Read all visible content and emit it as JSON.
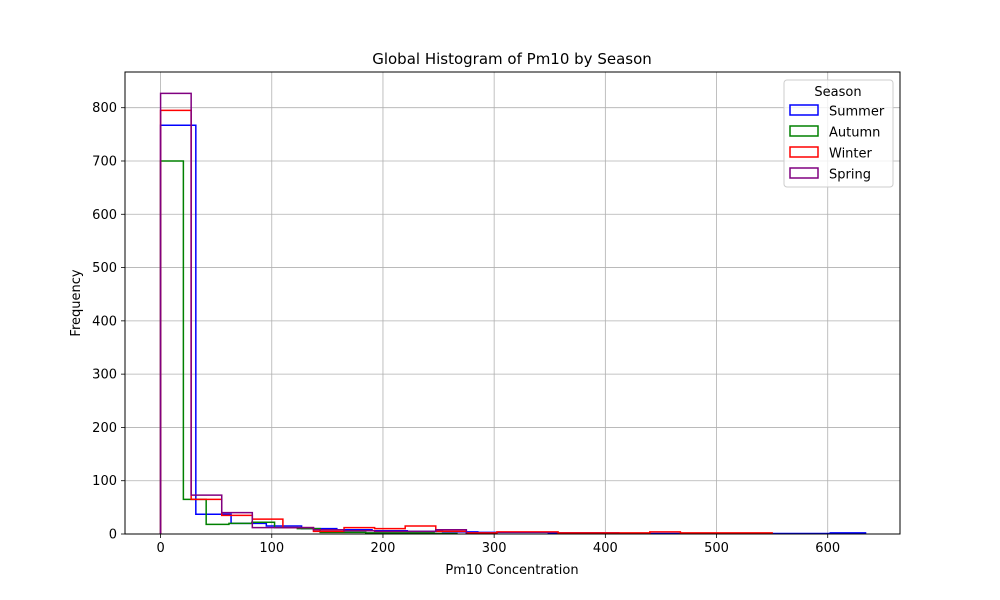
{
  "chart_data": {
    "type": "histogram",
    "title": "Global Histogram of Pm10 by Season",
    "xlabel": "Pm10 Concentration",
    "ylabel": "Frequency",
    "xlim": [
      -32,
      665
    ],
    "ylim": [
      0,
      867
    ],
    "xticks": [
      0,
      100,
      200,
      300,
      400,
      500,
      600
    ],
    "yticks": [
      0,
      100,
      200,
      300,
      400,
      500,
      600,
      700,
      800
    ],
    "grid": true,
    "legend": {
      "title": "Season",
      "position": "top-right"
    },
    "series": [
      {
        "name": "Summer",
        "color": "#0000ff",
        "bin_edges": [
          0,
          31.7,
          63.4,
          95.1,
          126.8,
          158.5,
          190.2,
          221.9,
          253.6,
          285.3,
          317,
          348.7,
          380.4,
          412.1,
          443.8,
          475.5,
          507.2,
          538.9,
          570.6,
          602.3,
          634
        ],
        "counts": [
          767,
          37,
          20,
          15,
          10,
          8,
          6,
          5,
          4,
          3,
          3,
          2,
          2,
          1,
          1,
          1,
          1,
          1,
          1,
          2
        ]
      },
      {
        "name": "Autumn",
        "color": "#008000",
        "bin_edges": [
          0,
          20.5,
          41,
          61.5,
          82,
          102.5,
          123,
          143.5,
          164,
          184.5,
          205,
          225.5,
          246,
          266.5
        ],
        "counts": [
          700,
          65,
          18,
          20,
          22,
          12,
          10,
          3,
          3,
          2,
          2,
          2,
          1
        ]
      },
      {
        "name": "Winter",
        "color": "#ff0000",
        "bin_edges": [
          0,
          27.5,
          55,
          82.5,
          110,
          137.5,
          165,
          192.5,
          220,
          247.5,
          275,
          302.5,
          330,
          357.5,
          385,
          412.5,
          440,
          467.5,
          495,
          522.5,
          550
        ],
        "counts": [
          795,
          65,
          35,
          28,
          12,
          5,
          12,
          10,
          15,
          5,
          2,
          4,
          4,
          2,
          2,
          2,
          4,
          2,
          2,
          2
        ]
      },
      {
        "name": "Spring",
        "color": "#800080",
        "bin_edges": [
          0,
          27.5,
          55,
          82.5,
          110,
          137.5,
          165,
          192.5,
          220,
          247.5,
          275
        ],
        "counts": [
          827,
          73,
          40,
          12,
          12,
          8,
          6,
          5,
          5,
          8
        ]
      }
    ]
  }
}
